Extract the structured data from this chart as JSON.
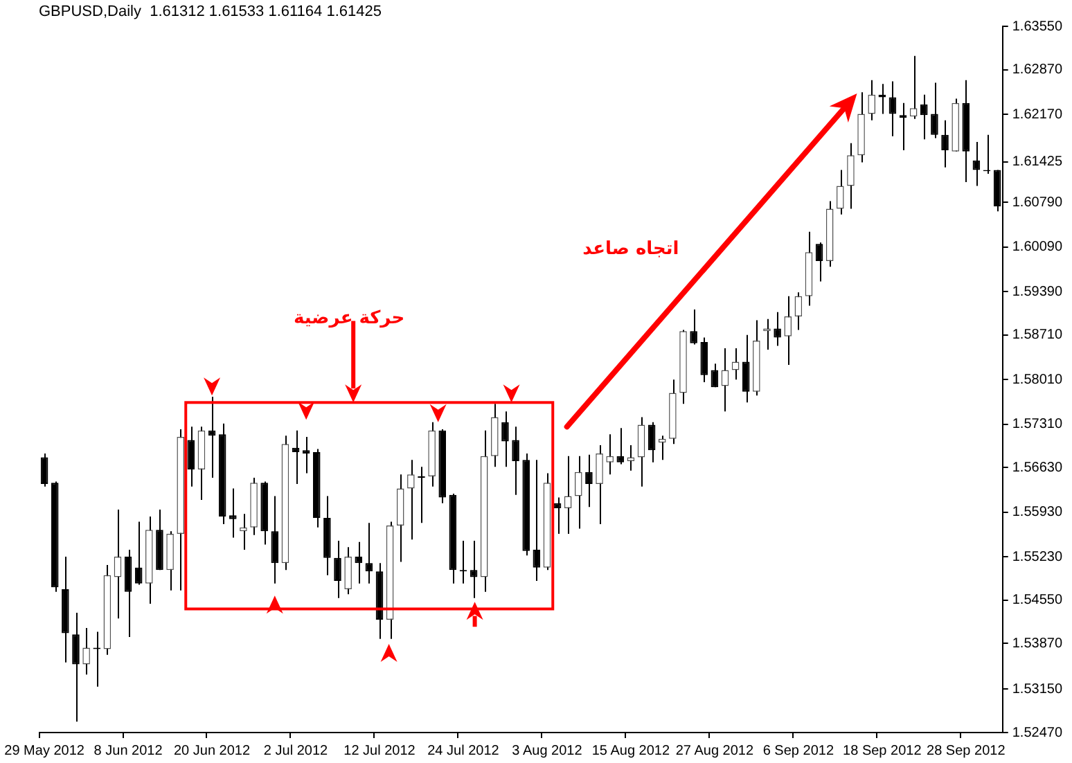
{
  "chart_data": {
    "type": "candlestick",
    "title": "GBPUSD,Daily  1.61312 1.61533 1.61164 1.61425",
    "annotations": [
      "حركة عرضية",
      "اتجاه صاعد"
    ],
    "categories": [
      "29 May 2012",
      null,
      null,
      null,
      null,
      null,
      null,
      null,
      "8 Jun 2012",
      null,
      null,
      null,
      null,
      null,
      null,
      null,
      "20 Jun 2012",
      null,
      null,
      null,
      null,
      null,
      null,
      null,
      "2 Jul 2012",
      null,
      null,
      null,
      null,
      null,
      null,
      null,
      "12 Jul 2012",
      null,
      null,
      null,
      null,
      null,
      null,
      null,
      "24 Jul 2012",
      null,
      null,
      null,
      null,
      null,
      null,
      null,
      "3 Aug 2012",
      null,
      null,
      null,
      null,
      null,
      null,
      null,
      "15 Aug 2012",
      null,
      null,
      null,
      null,
      null,
      null,
      null,
      "27 Aug 2012",
      null,
      null,
      null,
      null,
      null,
      null,
      null,
      "6 Sep 2012",
      null,
      null,
      null,
      null,
      null,
      null,
      null,
      "18 Sep 2012",
      null,
      null,
      null,
      null,
      null,
      null,
      null,
      "28 Sep 2012",
      null,
      null,
      null
    ],
    "ohlc": [
      [
        1.5679,
        1.5685,
        1.5633,
        1.5637
      ],
      [
        1.5639,
        1.5641,
        1.5468,
        1.5475
      ],
      [
        1.5472,
        1.5523,
        1.5357,
        1.5403
      ],
      [
        1.5401,
        1.5435,
        1.5264,
        1.5354
      ],
      [
        1.5354,
        1.5411,
        1.5338,
        1.538
      ],
      [
        1.538,
        1.5405,
        1.5319,
        1.5378
      ],
      [
        1.5378,
        1.551,
        1.5369,
        1.5494
      ],
      [
        1.5491,
        1.5597,
        1.5426,
        1.5523
      ],
      [
        1.5523,
        1.5534,
        1.5397,
        1.5468
      ],
      [
        1.5506,
        1.5578,
        1.5479,
        1.5481
      ],
      [
        1.5481,
        1.5586,
        1.5449,
        1.5565
      ],
      [
        1.5565,
        1.5597,
        1.5502,
        1.5502
      ],
      [
        1.5502,
        1.5563,
        1.547,
        1.5559
      ],
      [
        1.5559,
        1.5723,
        1.547,
        1.5711
      ],
      [
        1.5706,
        1.5727,
        1.5633,
        1.566
      ],
      [
        1.566,
        1.5727,
        1.5612,
        1.5721
      ],
      [
        1.5721,
        1.5774,
        1.5647,
        1.5713
      ],
      [
        1.5715,
        1.5732,
        1.5574,
        1.5586
      ],
      [
        1.5588,
        1.563,
        1.5553,
        1.5582
      ],
      [
        1.5563,
        1.559,
        1.5534,
        1.5569
      ],
      [
        1.5569,
        1.5647,
        1.5557,
        1.5639
      ],
      [
        1.5639,
        1.5641,
        1.5542,
        1.5563
      ],
      [
        1.5563,
        1.5618,
        1.5481,
        1.5513
      ],
      [
        1.5513,
        1.5713,
        1.5502,
        1.57
      ],
      [
        1.5694,
        1.5721,
        1.5637,
        1.5687
      ],
      [
        1.569,
        1.5711,
        1.5654,
        1.5685
      ],
      [
        1.5687,
        1.5692,
        1.5569,
        1.5584
      ],
      [
        1.5584,
        1.5618,
        1.5494,
        1.5521
      ],
      [
        1.5521,
        1.5548,
        1.5458,
        1.5485
      ],
      [
        1.5472,
        1.5538,
        1.5464,
        1.5523
      ],
      [
        1.5523,
        1.5546,
        1.5481,
        1.5513
      ],
      [
        1.5513,
        1.5576,
        1.5481,
        1.55
      ],
      [
        1.55,
        1.5513,
        1.5394,
        1.5424
      ],
      [
        1.5424,
        1.5578,
        1.5394,
        1.5572
      ],
      [
        1.5572,
        1.5652,
        1.5515,
        1.563
      ],
      [
        1.563,
        1.5675,
        1.555,
        1.5652
      ],
      [
        1.5649,
        1.5664,
        1.5576,
        1.5647
      ],
      [
        1.5649,
        1.5734,
        1.5633,
        1.5721
      ],
      [
        1.5721,
        1.5723,
        1.5607,
        1.5616
      ],
      [
        1.562,
        1.5622,
        1.5481,
        1.5502
      ],
      [
        1.5502,
        1.5548,
        1.5481,
        1.55
      ],
      [
        1.5502,
        1.5548,
        1.5458,
        1.5491
      ],
      [
        1.5491,
        1.5721,
        1.5468,
        1.5681
      ],
      [
        1.5681,
        1.5763,
        1.5664,
        1.5742
      ],
      [
        1.5734,
        1.5751,
        1.5664,
        1.5704
      ],
      [
        1.5706,
        1.5727,
        1.562,
        1.5673
      ],
      [
        1.5675,
        1.5685,
        1.5525,
        1.5532
      ],
      [
        1.5534,
        1.5675,
        1.5485,
        1.5506
      ],
      [
        1.5506,
        1.5654,
        1.5502,
        1.5639
      ],
      [
        1.5607,
        1.5616,
        1.5559,
        1.5599
      ],
      [
        1.5599,
        1.5681,
        1.5559,
        1.5618
      ],
      [
        1.5618,
        1.5681,
        1.5567,
        1.5656
      ],
      [
        1.5656,
        1.5683,
        1.5601,
        1.5637
      ],
      [
        1.5637,
        1.5698,
        1.5574,
        1.5685
      ],
      [
        1.5671,
        1.5715,
        1.5652,
        1.5681
      ],
      [
        1.5681,
        1.5725,
        1.5668,
        1.5671
      ],
      [
        1.5673,
        1.5698,
        1.5658,
        1.5679
      ],
      [
        1.5679,
        1.5742,
        1.5633,
        1.573
      ],
      [
        1.573,
        1.5734,
        1.5671,
        1.569
      ],
      [
        1.5702,
        1.5713,
        1.5675,
        1.5708
      ],
      [
        1.5708,
        1.5801,
        1.57,
        1.578
      ],
      [
        1.578,
        1.5879,
        1.5763,
        1.5877
      ],
      [
        1.5877,
        1.5911,
        1.5856,
        1.5858
      ],
      [
        1.586,
        1.5867,
        1.5797,
        1.5808
      ],
      [
        1.5816,
        1.5826,
        1.5789,
        1.5789
      ],
      [
        1.5791,
        1.585,
        1.5751,
        1.5816
      ],
      [
        1.5816,
        1.585,
        1.5801,
        1.5829
      ],
      [
        1.5829,
        1.5871,
        1.5765,
        1.5782
      ],
      [
        1.5782,
        1.5894,
        1.5776,
        1.5862
      ],
      [
        1.5877,
        1.5896,
        1.5848,
        1.5881
      ],
      [
        1.5881,
        1.5907,
        1.5854,
        1.5867
      ],
      [
        1.5869,
        1.5932,
        1.5824,
        1.59
      ],
      [
        1.59,
        1.5938,
        1.5879,
        1.5932
      ],
      [
        1.5932,
        1.6033,
        1.5917,
        1.6001
      ],
      [
        1.6014,
        1.6016,
        1.5955,
        1.5987
      ],
      [
        1.5987,
        1.6081,
        1.5978,
        1.6069
      ],
      [
        1.6069,
        1.613,
        1.606,
        1.6105
      ],
      [
        1.6105,
        1.6172,
        1.6069,
        1.6153
      ],
      [
        1.6153,
        1.6252,
        1.6142,
        1.6218
      ],
      [
        1.6218,
        1.6271,
        1.6208,
        1.6248
      ],
      [
        1.6248,
        1.6265,
        1.6218,
        1.6244
      ],
      [
        1.6244,
        1.6269,
        1.6183,
        1.6218
      ],
      [
        1.6216,
        1.6235,
        1.6161,
        1.6212
      ],
      [
        1.6214,
        1.6309,
        1.621,
        1.6227
      ],
      [
        1.6233,
        1.6248,
        1.6178,
        1.6216
      ],
      [
        1.6218,
        1.6267,
        1.618,
        1.6185
      ],
      [
        1.6185,
        1.6208,
        1.6134,
        1.6161
      ],
      [
        1.6159,
        1.6242,
        1.6159,
        1.6235
      ],
      [
        1.6235,
        1.6271,
        1.6111,
        1.6159
      ],
      [
        1.6145,
        1.6174,
        1.6105,
        1.613
      ],
      [
        1.613,
        1.6185,
        1.6124,
        1.6128
      ],
      [
        1.613,
        1.613,
        1.6065,
        1.6073
      ]
    ],
    "ylim": [
      1.5247,
      1.6355
    ],
    "yticks": [
      {
        "value": 1.5247,
        "label": "1.52470"
      },
      {
        "value": 1.5315,
        "label": "1.53150"
      },
      {
        "value": 1.5387,
        "label": "1.53870"
      },
      {
        "value": 1.5455,
        "label": "1.54550"
      },
      {
        "value": 1.5523,
        "label": "1.55230"
      },
      {
        "value": 1.5593,
        "label": "1.55930"
      },
      {
        "value": 1.5663,
        "label": "1.56630"
      },
      {
        "value": 1.5731,
        "label": "1.57310"
      },
      {
        "value": 1.5801,
        "label": "1.58010"
      },
      {
        "value": 1.5871,
        "label": "1.58710"
      },
      {
        "value": 1.5939,
        "label": "1.59390"
      },
      {
        "value": 1.6009,
        "label": "1.60090"
      },
      {
        "value": 1.6079,
        "label": "1.60790"
      },
      {
        "value": 1.61425,
        "label": "1.61425"
      },
      {
        "value": 1.6217,
        "label": "1.62170"
      },
      {
        "value": 1.6287,
        "label": "1.62870"
      },
      {
        "value": 1.6355,
        "label": "1.63550"
      }
    ]
  }
}
